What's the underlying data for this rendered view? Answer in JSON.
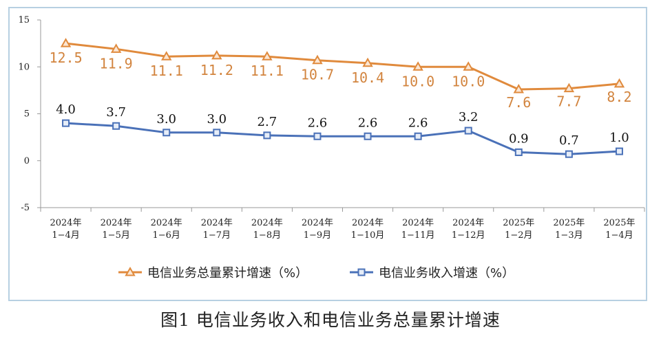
{
  "caption": "图1  电信业务收入和电信业务总量累计增速",
  "chart_data": {
    "type": "line",
    "categories": [
      [
        "2024年",
        "1−4月"
      ],
      [
        "2024年",
        "1−5月"
      ],
      [
        "2024年",
        "1−6月"
      ],
      [
        "2024年",
        "1−7月"
      ],
      [
        "2024年",
        "1−8月"
      ],
      [
        "2024年",
        "1−9月"
      ],
      [
        "2024年",
        "1−10月"
      ],
      [
        "2024年",
        "1−11月"
      ],
      [
        "2024年",
        "1−12月"
      ],
      [
        "2025年",
        "1−2月"
      ],
      [
        "2025年",
        "1−3月"
      ],
      [
        "2025年",
        "1−4月"
      ]
    ],
    "ylim": [
      -5,
      15
    ],
    "yticks": [
      -5,
      0,
      5,
      10,
      15
    ],
    "legend_position": "bottom",
    "series": [
      {
        "name": "电信业务总量累计增速（%）",
        "color": "#e08a3c",
        "label_color": "#d2843e",
        "marker": "triangle",
        "values": [
          12.5,
          11.9,
          11.1,
          11.2,
          11.1,
          10.7,
          10.4,
          10.0,
          10.0,
          7.6,
          7.7,
          8.2
        ],
        "labels": [
          "12.5",
          "11.9",
          "11.1",
          "11.2",
          "11.1",
          "10.7",
          "10.4",
          "10.0",
          "10.0",
          "7.6",
          "7.7",
          "8.2"
        ]
      },
      {
        "name": "电信业务收入增速（%）",
        "color": "#4a71b8",
        "label_color": "#111111",
        "marker": "square",
        "values": [
          4.0,
          3.7,
          3.0,
          3.0,
          2.7,
          2.6,
          2.6,
          2.6,
          3.2,
          0.9,
          0.7,
          1.0
        ],
        "labels": [
          "4.0",
          "3.7",
          "3.0",
          "3.0",
          "2.7",
          "2.6",
          "2.6",
          "2.6",
          "3.2",
          "0.9",
          "0.7",
          "1.0"
        ]
      }
    ]
  }
}
